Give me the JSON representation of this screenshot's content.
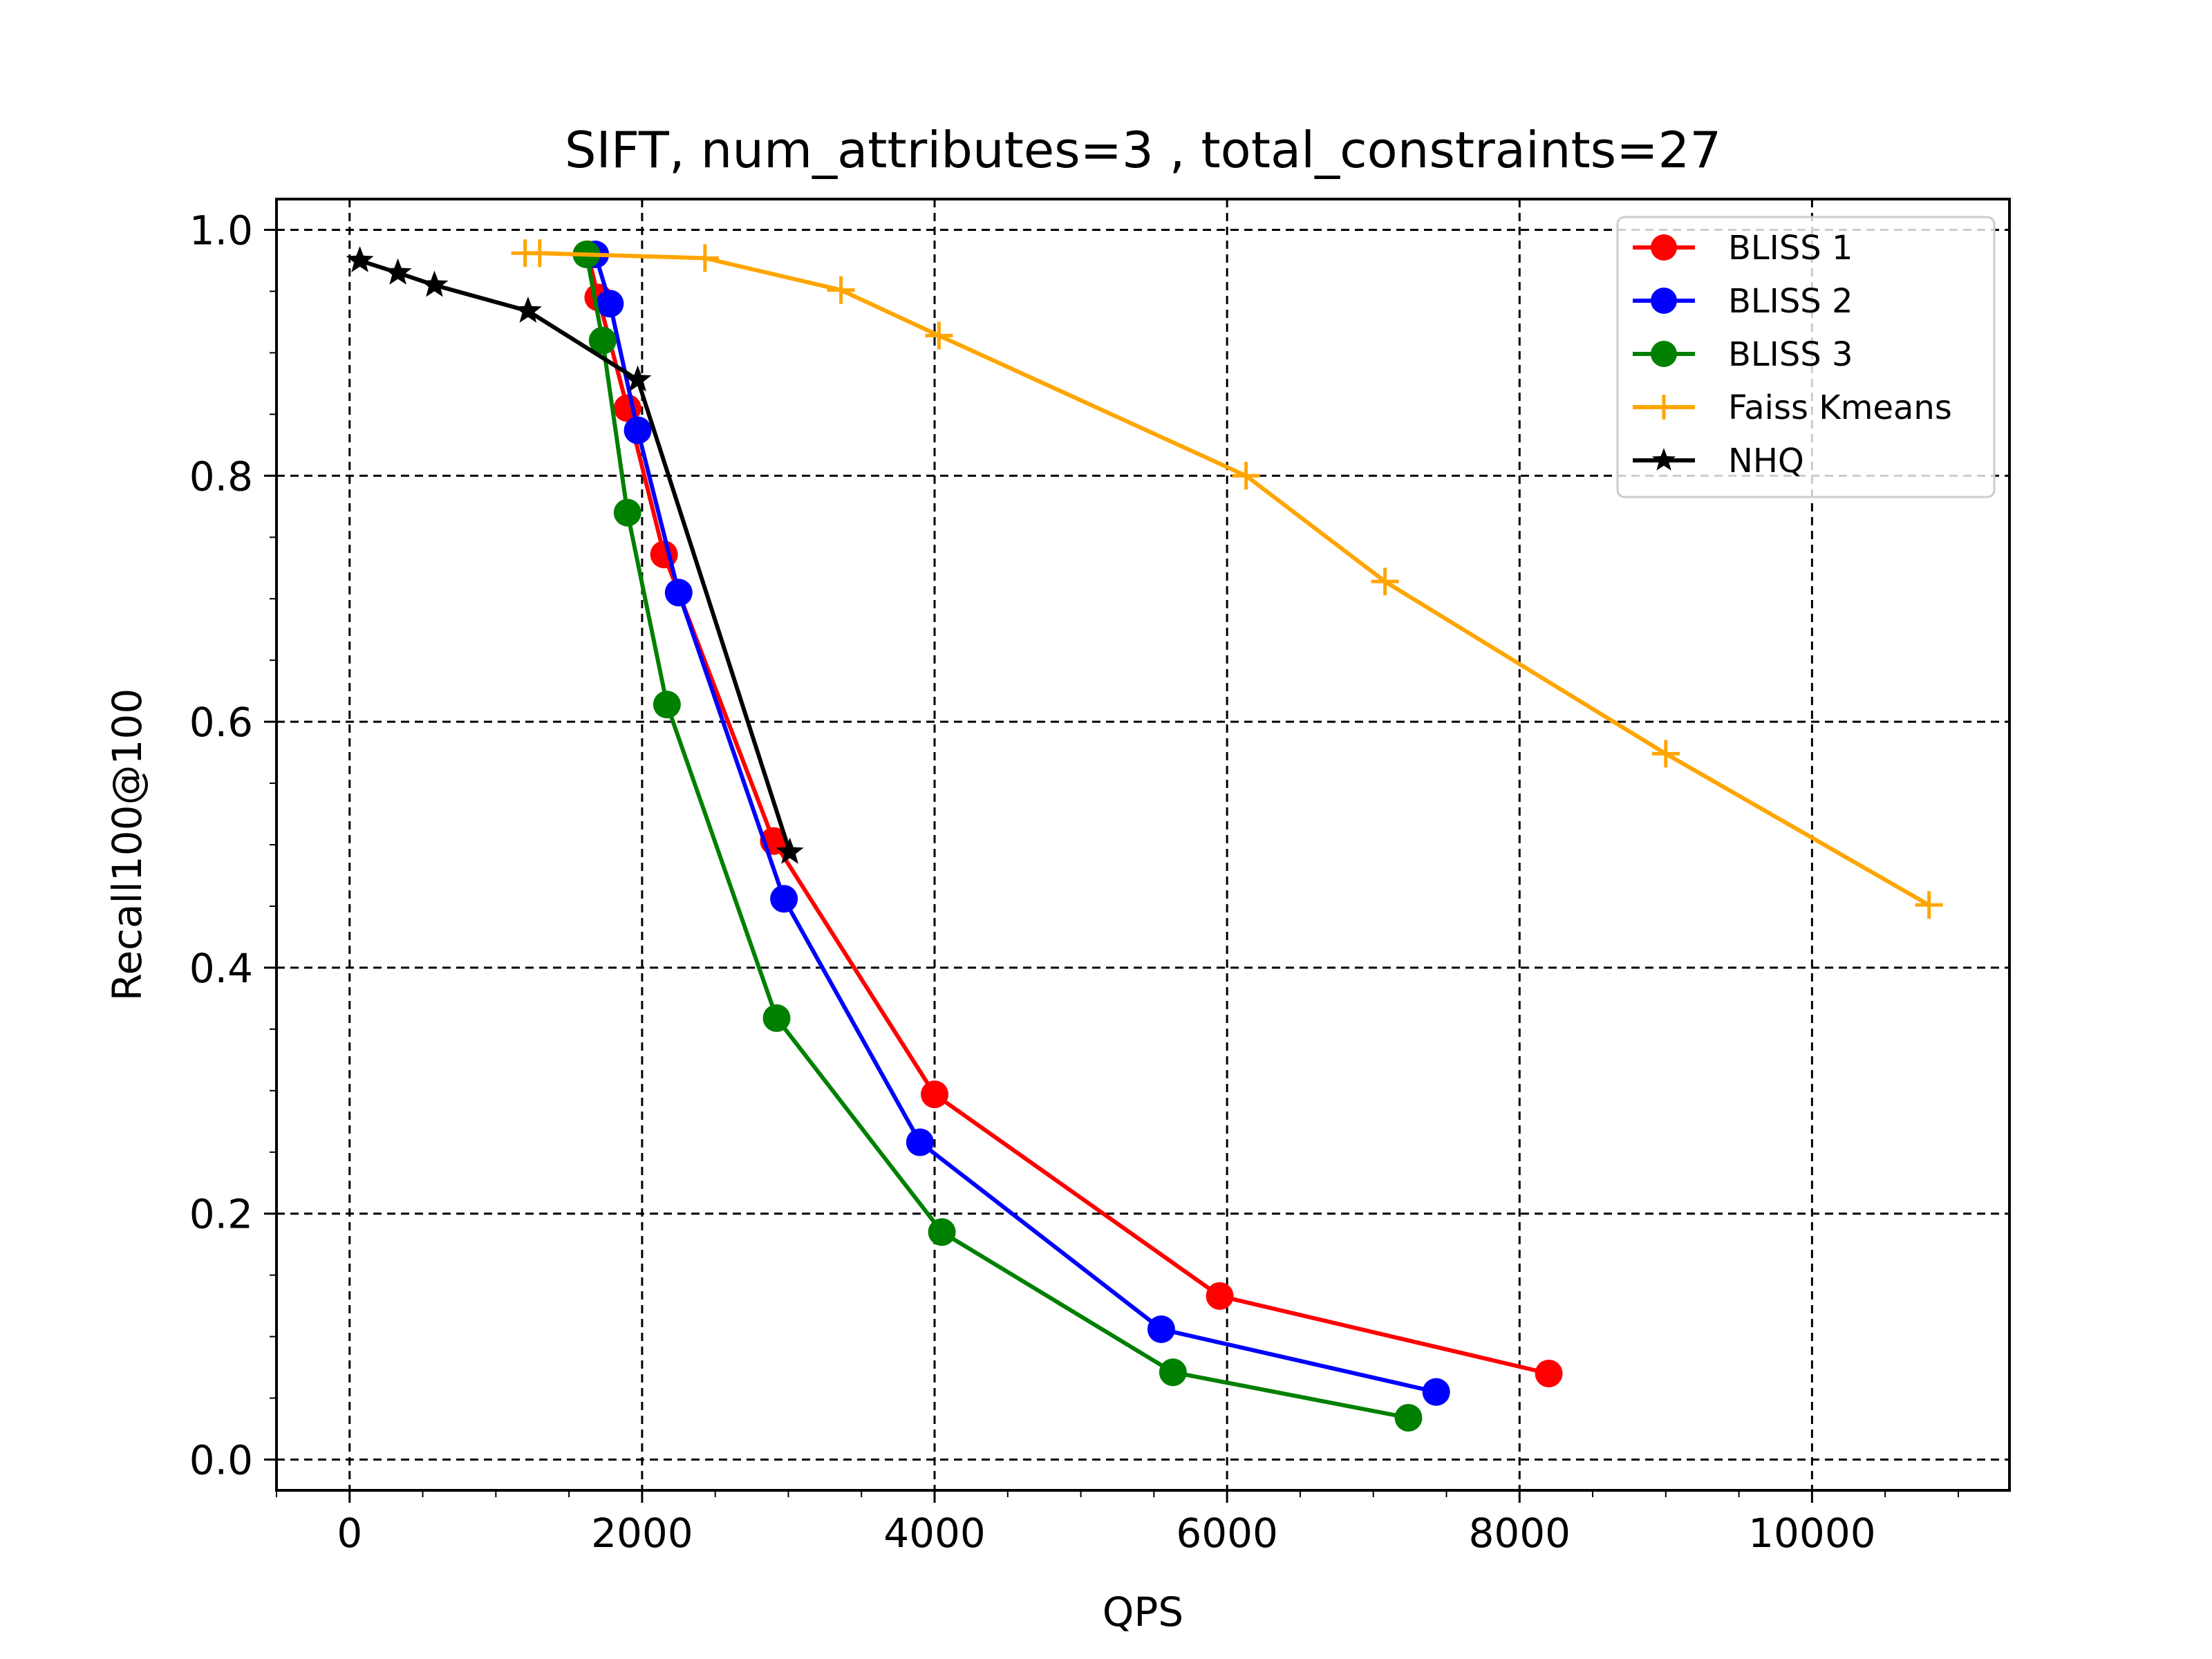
{
  "chart_data": {
    "type": "line",
    "title": "SIFT, num_attributes=3 , total_constraints=27",
    "xlabel": "QPS",
    "ylabel": "Recall100@100",
    "xlim": [
      -500,
      11350
    ],
    "ylim": [
      -0.025,
      1.025
    ],
    "xticks": [
      0,
      2000,
      4000,
      6000,
      8000,
      10000
    ],
    "xtick_labels": [
      "0",
      "2000",
      "4000",
      "6000",
      "8000",
      "10000"
    ],
    "yticks": [
      0.0,
      0.2,
      0.4,
      0.6,
      0.8,
      1.0
    ],
    "ytick_labels": [
      "0.0",
      "0.2",
      "0.4",
      "0.6",
      "0.8",
      "1.0"
    ],
    "grid": true,
    "legend_position": "top-right",
    "series": [
      {
        "name": "BLISS 1",
        "color": "#ff0000",
        "marker": "circle",
        "x": [
          1630,
          1700,
          1900,
          2150,
          2900,
          4000,
          5950,
          8200
        ],
        "y": [
          0.98,
          0.945,
          0.855,
          0.736,
          0.503,
          0.297,
          0.133,
          0.07
        ]
      },
      {
        "name": "BLISS 2",
        "color": "#0000ff",
        "marker": "circle",
        "x": [
          1680,
          1780,
          1970,
          2250,
          2970,
          3900,
          5550,
          7430
        ],
        "y": [
          0.98,
          0.94,
          0.837,
          0.705,
          0.456,
          0.258,
          0.106,
          0.055
        ]
      },
      {
        "name": "BLISS 3",
        "color": "#008000",
        "marker": "circle",
        "x": [
          1620,
          1730,
          1900,
          2170,
          2920,
          4050,
          5630,
          7240
        ],
        "y": [
          0.98,
          0.91,
          0.77,
          0.614,
          0.359,
          0.185,
          0.071,
          0.034
        ]
      },
      {
        "name": "Faiss Kmeans",
        "color": "#ffa500",
        "marker": "plus",
        "x": [
          1200,
          1300,
          2430,
          3360,
          4030,
          6130,
          7080,
          9000,
          10800
        ],
        "y": [
          0.981,
          0.981,
          0.977,
          0.951,
          0.914,
          0.8,
          0.714,
          0.574,
          0.451
        ]
      },
      {
        "name": "NHQ",
        "color": "#000000",
        "marker": "star",
        "x": [
          70,
          330,
          580,
          1220,
          1970,
          3010
        ],
        "y": [
          0.975,
          0.965,
          0.955,
          0.934,
          0.878,
          0.494
        ]
      }
    ]
  }
}
